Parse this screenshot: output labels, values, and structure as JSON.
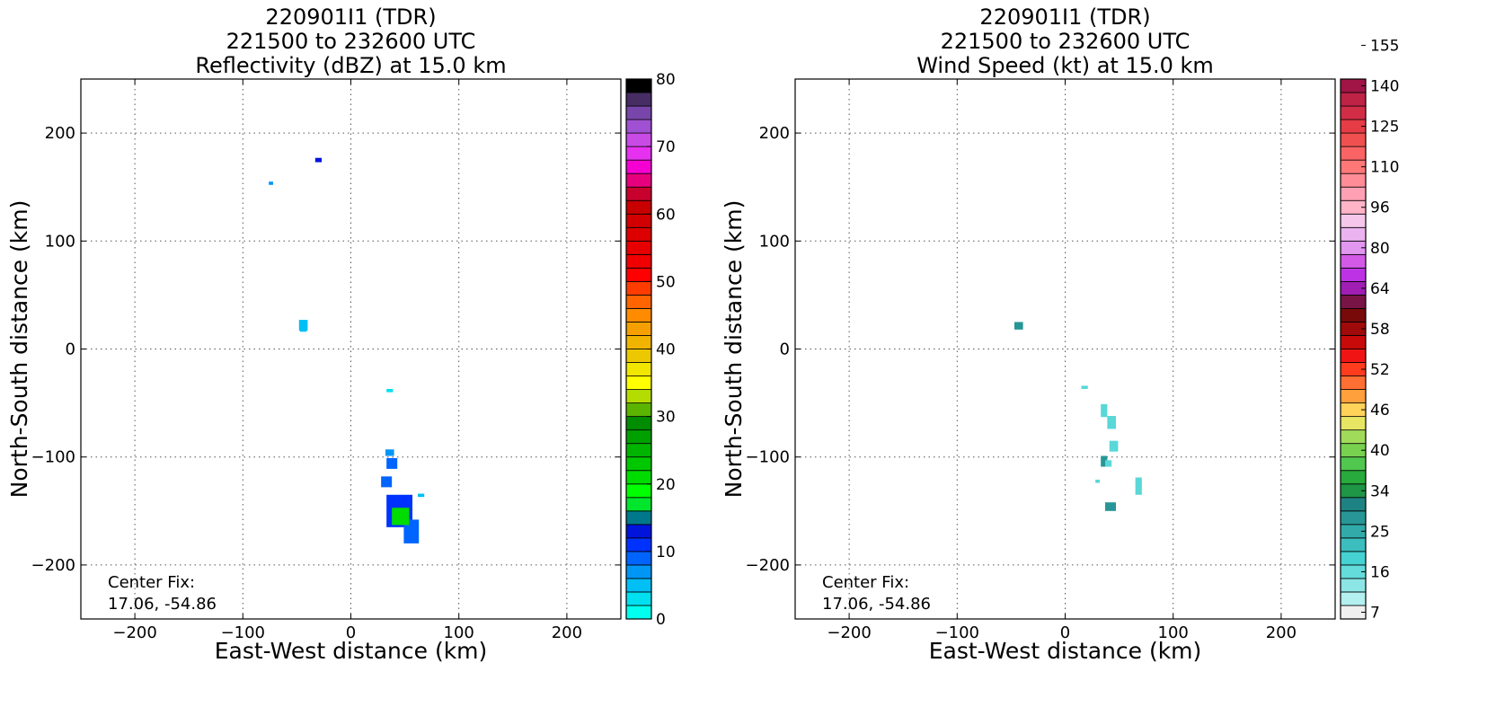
{
  "panels": [
    {
      "title_lines": [
        "220901I1 (TDR)",
        "221500 to 232600 UTC",
        "Reflectivity (dBZ) at 15.0 km"
      ],
      "xlabel": "East-West distance (km)",
      "ylabel": "North-South distance (km)",
      "xticks": [
        "−200",
        "−100",
        "0",
        "100",
        "200"
      ],
      "yticks": [
        "200",
        "100",
        "0",
        "−100",
        "−200"
      ],
      "center_fix_label": "Center Fix:",
      "center_fix_value": "17.06, -54.86",
      "colorbar": {
        "tick_labels": [
          "80",
          "70",
          "60",
          "50",
          "40",
          "30",
          "20",
          "10",
          "0"
        ],
        "colors": [
          "#00ffee",
          "#00e0f0",
          "#00bff5",
          "#0096f5",
          "#0064ff",
          "#0032ff",
          "#0014dc",
          "#00788c",
          "#00e62d",
          "#00ff00",
          "#00dc00",
          "#00c800",
          "#00b400",
          "#00a000",
          "#008c00",
          "#5ab400",
          "#b4dc00",
          "#ffff00",
          "#f0e600",
          "#ebc800",
          "#f0b400",
          "#f5a000",
          "#ff8c00",
          "#ff6400",
          "#ff3c00",
          "#ff0000",
          "#f00000",
          "#e60000",
          "#dc0000",
          "#d20000",
          "#c80000",
          "#c8002d",
          "#e6007d",
          "#f500d2",
          "#e632f0",
          "#c84be6",
          "#a050d2",
          "#7846aa",
          "#462d64",
          "#000000"
        ]
      }
    },
    {
      "title_lines": [
        "220901I1 (TDR)",
        "221500 to 232600 UTC",
        "Wind Speed (kt) at 15.0 km"
      ],
      "xlabel": "East-West distance (km)",
      "ylabel": "North-South distance (km)",
      "xticks": [
        "−200",
        "−100",
        "0",
        "100",
        "200"
      ],
      "yticks": [
        "200",
        "100",
        "0",
        "−100",
        "−200"
      ],
      "center_fix_label": "Center Fix:",
      "center_fix_value": "17.06, -54.86",
      "colorbar": {
        "tick_labels": [
          "155",
          "140",
          "125",
          "110",
          "96",
          "80",
          "64",
          "58",
          "52",
          "46",
          "40",
          "34",
          "25",
          "16",
          "7"
        ],
        "colors": [
          "#f0f0f0",
          "#b4f0f0",
          "#8ce6e6",
          "#64dcdc",
          "#46d2d2",
          "#3cbebe",
          "#32aaaa",
          "#289696",
          "#1e8282",
          "#1e9646",
          "#28aa3c",
          "#50c850",
          "#78d250",
          "#a0dc5a",
          "#e6e664",
          "#ffd25a",
          "#ffa03c",
          "#ff6e32",
          "#ff3c1e",
          "#f01414",
          "#c80a0a",
          "#a00a0a",
          "#780a0a",
          "#781446",
          "#a01eb4",
          "#be32e6",
          "#d25ae6",
          "#e196f0",
          "#ebb4f0",
          "#f5c8eb",
          "#ffb4c8",
          "#ffa0b4",
          "#ff8c96",
          "#ff7878",
          "#fa6464",
          "#f05050",
          "#e63c46",
          "#d22d46",
          "#be2346",
          "#a01446"
        ]
      }
    }
  ],
  "chart_data": [
    {
      "type": "heatmap",
      "title": "220901I1 (TDR) 221500 to 232600 UTC Reflectivity (dBZ) at 15.0 km",
      "xlabel": "East-West distance (km)",
      "ylabel": "North-South distance (km)",
      "xlim": [
        -250,
        250
      ],
      "ylim": [
        -250,
        250
      ],
      "grid": true,
      "colorbar_range": [
        0,
        80
      ],
      "colorbar_label_values": [
        0,
        10,
        20,
        30,
        40,
        50,
        60,
        70,
        80
      ],
      "echo_patches": [
        {
          "x": -30,
          "y": 175,
          "value": 12
        },
        {
          "x": -74,
          "y": 154,
          "value": 6
        },
        {
          "x": -44,
          "y": 22,
          "value": 4
        },
        {
          "x": 36,
          "y": -38,
          "value": 2
        },
        {
          "x": 36,
          "y": -95,
          "value": 6
        },
        {
          "x": 38,
          "y": -105,
          "value": 8
        },
        {
          "x": 33,
          "y": -122,
          "value": 8
        },
        {
          "x": 65,
          "y": -135,
          "value": 4
        },
        {
          "x": 45,
          "y": -150,
          "value": 10
        },
        {
          "x": 56,
          "y": -168,
          "value": 8
        },
        {
          "x": 46,
          "y": -153,
          "value": 20
        }
      ]
    },
    {
      "type": "heatmap",
      "title": "220901I1 (TDR) 221500 to 232600 UTC Wind Speed (kt) at 15.0 km",
      "xlabel": "East-West distance (km)",
      "ylabel": "North-South distance (km)",
      "xlim": [
        -250,
        250
      ],
      "ylim": [
        -250,
        250
      ],
      "grid": true,
      "colorbar_label_values": [
        7,
        16,
        25,
        34,
        40,
        46,
        52,
        58,
        64,
        80,
        96,
        110,
        125,
        140,
        155
      ],
      "echo_patches": [
        {
          "x": -43,
          "y": 22,
          "value": 25
        },
        {
          "x": 18,
          "y": -35,
          "value": 16
        },
        {
          "x": 36,
          "y": -57,
          "value": 16
        },
        {
          "x": 43,
          "y": -68,
          "value": 16
        },
        {
          "x": 45,
          "y": -90,
          "value": 16
        },
        {
          "x": 36,
          "y": -103,
          "value": 25
        },
        {
          "x": 40,
          "y": -106,
          "value": 16
        },
        {
          "x": 30,
          "y": -122,
          "value": 16
        },
        {
          "x": 68,
          "y": -127,
          "value": 16
        },
        {
          "x": 42,
          "y": -145,
          "value": 25
        }
      ]
    }
  ]
}
